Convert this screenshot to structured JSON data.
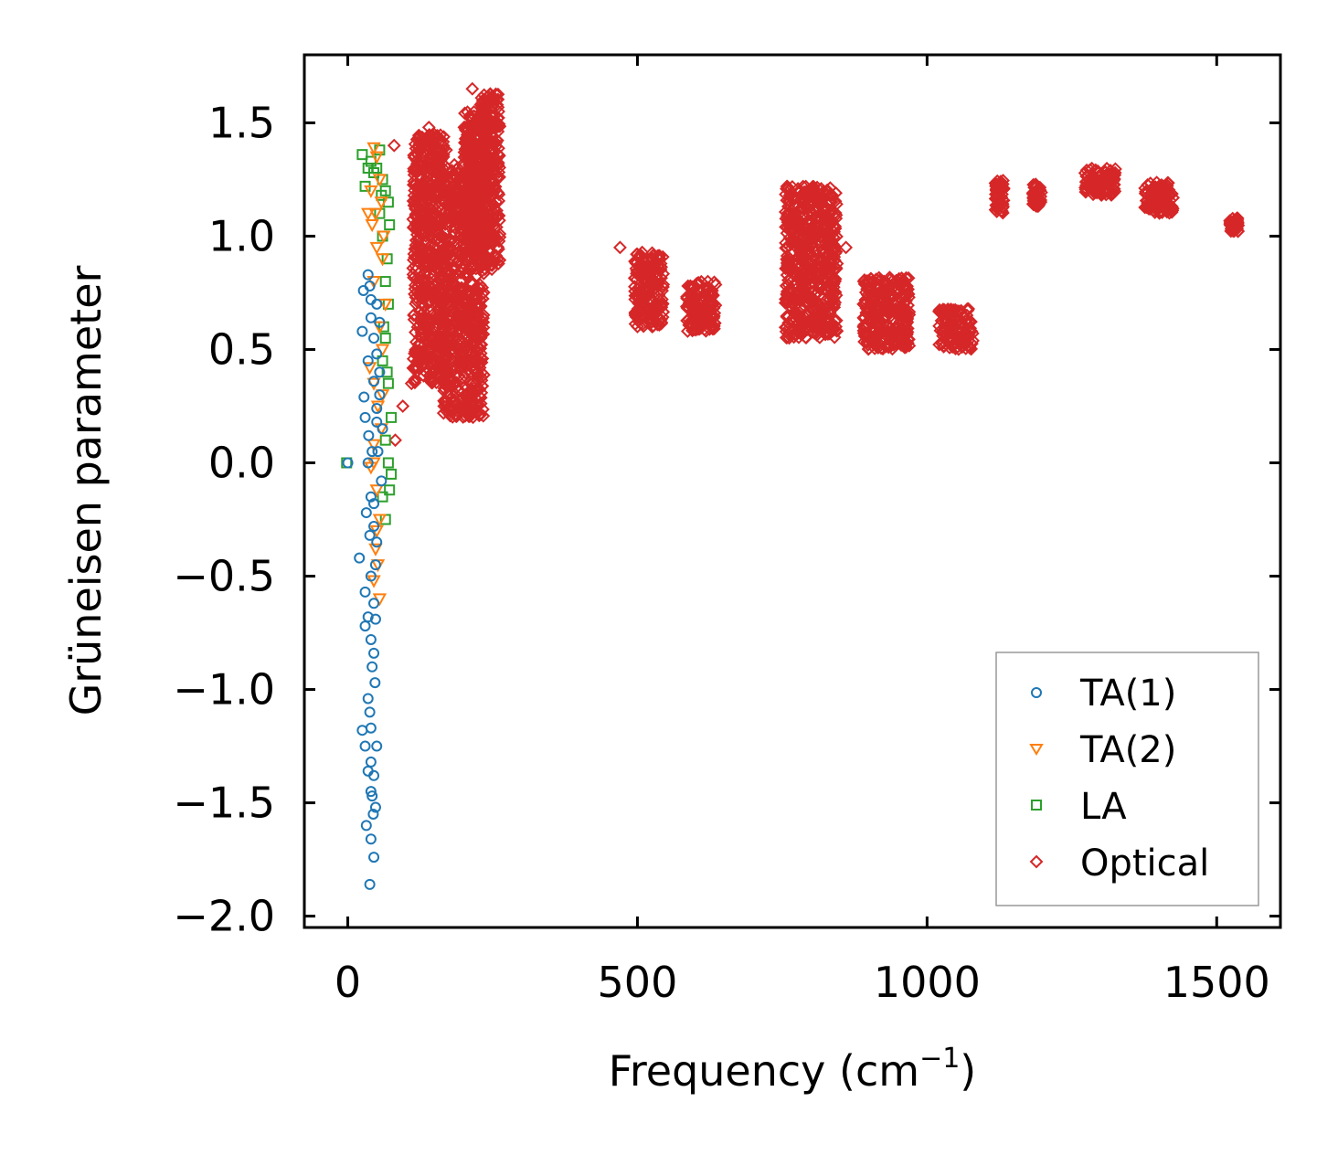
{
  "chart_data": {
    "type": "scatter",
    "title": "",
    "xlabel": "Frequency (cm",
    "xlabel_sup": "−1",
    "xlabel_end": ")",
    "ylabel": "Grüneisen parameter",
    "xlim": [
      -75,
      1610
    ],
    "ylim": [
      -2.05,
      1.8
    ],
    "xticks": [
      0,
      500,
      1000,
      1500
    ],
    "xtick_labels": [
      "0",
      "500",
      "1000",
      "1500"
    ],
    "yticks": [
      -2.0,
      -1.5,
      -1.0,
      -0.5,
      0.0,
      0.5,
      1.0,
      1.5
    ],
    "ytick_labels": [
      "−2.0",
      "−1.5",
      "−1.0",
      "−0.5",
      "0.0",
      "0.5",
      "1.0",
      "1.5"
    ],
    "grid": false,
    "legend_position": "lower-right",
    "series": [
      {
        "name": "TA(1)",
        "marker": "circle",
        "color": "#1f77b4",
        "points": [
          [
            0,
            0
          ],
          [
            20,
            -0.42
          ],
          [
            25,
            0.58
          ],
          [
            27,
            0.76
          ],
          [
            30,
            -0.57
          ],
          [
            35,
            0.83
          ],
          [
            30,
            -0.72
          ],
          [
            38,
            0.78
          ],
          [
            40,
            0.72
          ],
          [
            35,
            -1.04
          ],
          [
            40,
            0.64
          ],
          [
            40,
            -1.17
          ],
          [
            45,
            0.55
          ],
          [
            35,
            0.45
          ],
          [
            30,
            0.2
          ],
          [
            28,
            0.29
          ],
          [
            45,
            0.36
          ],
          [
            50,
            0.18
          ],
          [
            35,
            0.0
          ],
          [
            40,
            -0.15
          ],
          [
            32,
            -0.22
          ],
          [
            45,
            -0.28
          ],
          [
            50,
            -0.35
          ],
          [
            40,
            -0.5
          ],
          [
            45,
            -0.62
          ],
          [
            48,
            -0.69
          ],
          [
            40,
            -0.78
          ],
          [
            45,
            -0.84
          ],
          [
            42,
            -0.9
          ],
          [
            47,
            -0.97
          ],
          [
            38,
            -1.1
          ],
          [
            50,
            -1.25
          ],
          [
            40,
            -1.32
          ],
          [
            45,
            -1.38
          ],
          [
            40,
            -1.45
          ],
          [
            48,
            -1.52
          ],
          [
            32,
            -1.6
          ],
          [
            40,
            -1.66
          ],
          [
            45,
            -1.74
          ],
          [
            38,
            -1.86
          ],
          [
            25,
            -1.18
          ],
          [
            30,
            -1.25
          ],
          [
            35,
            -0.68
          ],
          [
            55,
            0.62
          ],
          [
            50,
            0.48
          ],
          [
            55,
            0.3
          ],
          [
            60,
            0.15
          ],
          [
            52,
            0.05
          ],
          [
            58,
            -0.08
          ],
          [
            45,
            -0.18
          ],
          [
            50,
            0.24
          ],
          [
            55,
            0.4
          ],
          [
            42,
            0.05
          ],
          [
            38,
            -0.32
          ],
          [
            48,
            -0.45
          ],
          [
            35,
            -1.36
          ],
          [
            42,
            -1.47
          ],
          [
            44,
            -1.55
          ],
          [
            36,
            0.12
          ],
          [
            50,
            0.7
          ]
        ]
      },
      {
        "name": "TA(2)",
        "marker": "triangle-down",
        "color": "#ff7f0e",
        "points": [
          [
            45,
            1.39
          ],
          [
            50,
            1.35
          ],
          [
            40,
            1.2
          ],
          [
            48,
            1.1
          ],
          [
            42,
            1.05
          ],
          [
            55,
            1.25
          ],
          [
            50,
            0.95
          ],
          [
            45,
            0.8
          ],
          [
            55,
            0.6
          ],
          [
            60,
            0.5
          ],
          [
            38,
            0.42
          ],
          [
            45,
            0.35
          ],
          [
            52,
            0.25
          ],
          [
            58,
            0.15
          ],
          [
            45,
            0.08
          ],
          [
            40,
            -0.02
          ],
          [
            50,
            -0.12
          ],
          [
            55,
            -0.25
          ],
          [
            48,
            -0.38
          ],
          [
            52,
            -0.45
          ],
          [
            45,
            -0.52
          ],
          [
            55,
            -0.6
          ],
          [
            60,
            0.9
          ],
          [
            65,
            0.7
          ],
          [
            62,
            1.0
          ],
          [
            58,
            1.15
          ],
          [
            35,
            1.1
          ],
          [
            45,
            0.0
          ],
          [
            60,
            0.3
          ],
          [
            50,
            -0.3
          ]
        ]
      },
      {
        "name": "LA",
        "marker": "square",
        "color": "#2ca02c",
        "points": [
          [
            -2,
            0.0
          ],
          [
            25,
            1.36
          ],
          [
            30,
            1.22
          ],
          [
            35,
            1.3
          ],
          [
            40,
            1.33
          ],
          [
            50,
            1.3
          ],
          [
            55,
            1.38
          ],
          [
            60,
            1.25
          ],
          [
            65,
            1.2
          ],
          [
            70,
            1.15
          ],
          [
            72,
            1.05
          ],
          [
            68,
            0.9
          ],
          [
            60,
            1.0
          ],
          [
            65,
            0.8
          ],
          [
            70,
            0.7
          ],
          [
            65,
            0.55
          ],
          [
            60,
            0.45
          ],
          [
            70,
            0.35
          ],
          [
            75,
            0.2
          ],
          [
            65,
            0.1
          ],
          [
            70,
            0.0
          ],
          [
            75,
            -0.05
          ],
          [
            60,
            -0.15
          ],
          [
            65,
            -0.25
          ],
          [
            72,
            -0.12
          ],
          [
            55,
            1.1
          ],
          [
            62,
            0.6
          ],
          [
            68,
            0.4
          ],
          [
            58,
            1.18
          ],
          [
            45,
            1.28
          ]
        ]
      },
      {
        "name": "Optical",
        "marker": "diamond",
        "color": "#d62728",
        "clusters": [
          {
            "x": 200,
            "y_range": [
              0.2,
              1.32
            ],
            "spread": 70
          },
          {
            "x": 220,
            "y_range": [
              1.0,
              1.55
            ],
            "spread": 40
          },
          {
            "x": 140,
            "y_range": [
              0.35,
              1.45
            ],
            "spread": 55
          },
          {
            "x": 245,
            "y_range": [
              0.85,
              1.63
            ],
            "spread": 35
          },
          {
            "x": 520,
            "y_range": [
              0.6,
              0.93
            ],
            "spread": 50
          },
          {
            "x": 610,
            "y_range": [
              0.58,
              0.8
            ],
            "spread": 50
          },
          {
            "x": 800,
            "y_range": [
              0.55,
              1.22
            ],
            "spread": 90
          },
          {
            "x": 930,
            "y_range": [
              0.5,
              0.82
            ],
            "spread": 80
          },
          {
            "x": 1050,
            "y_range": [
              0.5,
              0.68
            ],
            "spread": 60
          },
          {
            "x": 1125,
            "y_range": [
              1.1,
              1.25
            ],
            "spread": 15
          },
          {
            "x": 1190,
            "y_range": [
              1.13,
              1.23
            ],
            "spread": 15
          },
          {
            "x": 1300,
            "y_range": [
              1.18,
              1.3
            ],
            "spread": 55
          },
          {
            "x": 1400,
            "y_range": [
              1.1,
              1.24
            ],
            "spread": 50
          },
          {
            "x": 1530,
            "y_range": [
              1.02,
              1.08
            ],
            "spread": 15
          }
        ],
        "outliers": [
          [
            80,
            1.4
          ],
          [
            82,
            0.1
          ],
          [
            95,
            0.25
          ],
          [
            110,
            0.35
          ],
          [
            115,
            0.42
          ],
          [
            150,
            0.6
          ],
          [
            170,
            1.38
          ],
          [
            470,
            0.95
          ],
          [
            820,
            1.09
          ],
          [
            860,
            0.95
          ],
          [
            890,
            0.7
          ],
          [
            140,
            1.48
          ],
          [
            215,
            1.65
          ]
        ]
      }
    ]
  },
  "legend": {
    "entries": [
      "TA(1)",
      "TA(2)",
      "LA",
      "Optical"
    ]
  },
  "colors": {
    "ta1": "#1f77b4",
    "ta2": "#ff7f0e",
    "la": "#2ca02c",
    "optical": "#d62728"
  }
}
